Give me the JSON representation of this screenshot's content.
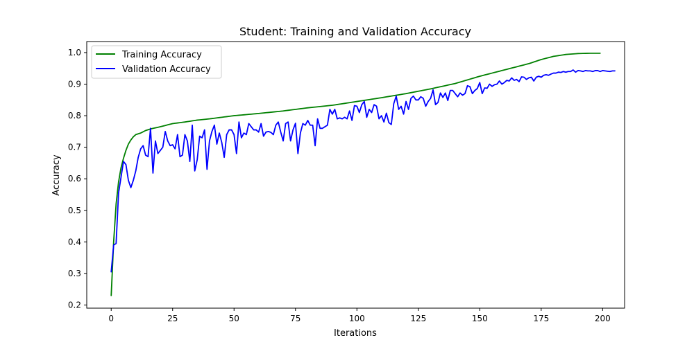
{
  "chart_data": {
    "type": "line",
    "title": "Student: Training and Validation Accuracy",
    "xlabel": "Iterations",
    "ylabel": "Accuracy",
    "xlim": [
      -9.95,
      208.95
    ],
    "ylim": [
      0.19,
      1.035
    ],
    "xticks": [
      0,
      25,
      50,
      75,
      100,
      125,
      150,
      175,
      200
    ],
    "yticks": [
      0.2,
      0.3,
      0.4,
      0.5,
      0.6,
      0.7,
      0.8,
      0.9,
      1.0
    ],
    "ytick_labels": [
      "0.2",
      "0.3",
      "0.4",
      "0.5",
      "0.6",
      "0.7",
      "0.8",
      "0.9",
      "1.0"
    ],
    "grid": false,
    "legend_position": "upper-left",
    "series": [
      {
        "name": "Training Accuracy",
        "color": "#008000",
        "anchors": [
          [
            0,
            0.23
          ],
          [
            1,
            0.4
          ],
          [
            2,
            0.52
          ],
          [
            3,
            0.59
          ],
          [
            4,
            0.635
          ],
          [
            5,
            0.665
          ],
          [
            6,
            0.69
          ],
          [
            7,
            0.71
          ],
          [
            8,
            0.723
          ],
          [
            9,
            0.733
          ],
          [
            10,
            0.74
          ],
          [
            12,
            0.745
          ],
          [
            14,
            0.753
          ],
          [
            16,
            0.758
          ],
          [
            20,
            0.765
          ],
          [
            25,
            0.775
          ],
          [
            30,
            0.78
          ],
          [
            35,
            0.786
          ],
          [
            40,
            0.79
          ],
          [
            50,
            0.8
          ],
          [
            60,
            0.807
          ],
          [
            70,
            0.815
          ],
          [
            80,
            0.825
          ],
          [
            90,
            0.833
          ],
          [
            100,
            0.845
          ],
          [
            110,
            0.857
          ],
          [
            120,
            0.87
          ],
          [
            130,
            0.885
          ],
          [
            140,
            0.902
          ],
          [
            150,
            0.925
          ],
          [
            160,
            0.945
          ],
          [
            170,
            0.965
          ],
          [
            175,
            0.978
          ],
          [
            180,
            0.988
          ],
          [
            185,
            0.994
          ],
          [
            190,
            0.997
          ],
          [
            195,
            0.998
          ],
          [
            199,
            0.998
          ]
        ]
      },
      {
        "name": "Validation Accuracy",
        "color": "#0000ff",
        "values": [
          0.305,
          0.39,
          0.395,
          0.555,
          0.605,
          0.655,
          0.645,
          0.595,
          0.572,
          0.595,
          0.625,
          0.668,
          0.695,
          0.705,
          0.675,
          0.67,
          0.76,
          0.618,
          0.72,
          0.68,
          0.69,
          0.7,
          0.75,
          0.72,
          0.705,
          0.708,
          0.695,
          0.74,
          0.67,
          0.675,
          0.74,
          0.72,
          0.655,
          0.77,
          0.625,
          0.66,
          0.735,
          0.73,
          0.755,
          0.63,
          0.72,
          0.75,
          0.77,
          0.71,
          0.745,
          0.715,
          0.668,
          0.74,
          0.755,
          0.755,
          0.74,
          0.68,
          0.78,
          0.73,
          0.745,
          0.74,
          0.775,
          0.765,
          0.755,
          0.755,
          0.748,
          0.775,
          0.735,
          0.748,
          0.75,
          0.747,
          0.74,
          0.77,
          0.78,
          0.748,
          0.72,
          0.775,
          0.78,
          0.72,
          0.755,
          0.776,
          0.68,
          0.745,
          0.775,
          0.77,
          0.785,
          0.77,
          0.77,
          0.705,
          0.79,
          0.76,
          0.76,
          0.765,
          0.77,
          0.82,
          0.805,
          0.82,
          0.79,
          0.793,
          0.79,
          0.795,
          0.79,
          0.815,
          0.785,
          0.832,
          0.83,
          0.81,
          0.835,
          0.845,
          0.795,
          0.82,
          0.81,
          0.835,
          0.83,
          0.79,
          0.8,
          0.78,
          0.808,
          0.778,
          0.772,
          0.838,
          0.862,
          0.82,
          0.83,
          0.805,
          0.845,
          0.82,
          0.855,
          0.862,
          0.85,
          0.85,
          0.86,
          0.855,
          0.83,
          0.845,
          0.855,
          0.882,
          0.835,
          0.842,
          0.872,
          0.858,
          0.872,
          0.848,
          0.88,
          0.88,
          0.87,
          0.86,
          0.872,
          0.865,
          0.87,
          0.895,
          0.892,
          0.87,
          0.88,
          0.886,
          0.905,
          0.87,
          0.888,
          0.887,
          0.9,
          0.893,
          0.898,
          0.9,
          0.91,
          0.9,
          0.905,
          0.912,
          0.91,
          0.92,
          0.912,
          0.915,
          0.908,
          0.923,
          0.922,
          0.915,
          0.92,
          0.922,
          0.91,
          0.922,
          0.925,
          0.922,
          0.928,
          0.93,
          0.928,
          0.932,
          0.935,
          0.935,
          0.938,
          0.937,
          0.94,
          0.938,
          0.94,
          0.94,
          0.945,
          0.938,
          0.943,
          0.942,
          0.94,
          0.943,
          0.942,
          0.942,
          0.94,
          0.943,
          0.943,
          0.94,
          0.943,
          0.942,
          0.941,
          0.94,
          0.942,
          0.942
        ]
      }
    ]
  }
}
